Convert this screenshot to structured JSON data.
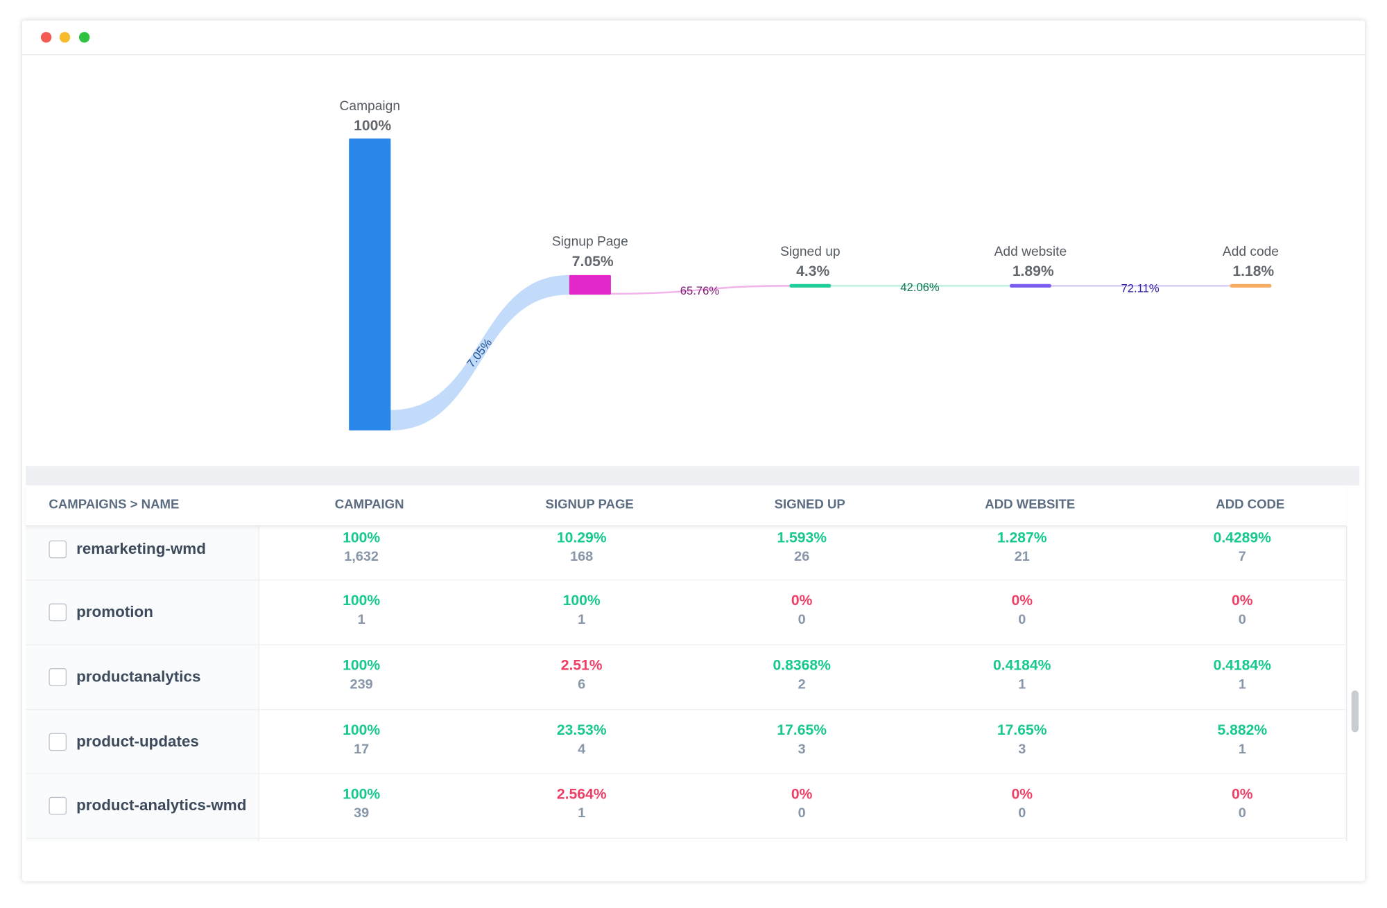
{
  "window": {
    "controls": {
      "close_color": "#f25a52",
      "minimize_color": "#f7bb2e",
      "maximize_color": "#2ec240"
    }
  },
  "funnel": {
    "stages": [
      {
        "name": "Campaign",
        "value": "100%",
        "color": "#2b86e9"
      },
      {
        "name": "Signup Page",
        "value": "7.05%",
        "color": "#e228c9"
      },
      {
        "name": "Signed up",
        "value": "4.3%",
        "color": "#1ecf9a"
      },
      {
        "name": "Add website",
        "value": "1.89%",
        "color": "#7b5cf0"
      },
      {
        "name": "Add code",
        "value": "1.18%",
        "color": "#f5ad62"
      }
    ],
    "links": [
      {
        "label": "7.05%",
        "color": "#c2dbfa",
        "text_color": "#1c4f8c"
      },
      {
        "label": "65.76%",
        "color": "#f1b6e9",
        "text_color": "#7a1a72"
      },
      {
        "label": "42.06%",
        "color": "#c3f0df",
        "text_color": "#0e7352"
      },
      {
        "label": "72.11%",
        "color": "#d9cff8",
        "text_color": "#2b1fa6"
      }
    ]
  },
  "table": {
    "headers": [
      "CAMPAIGNS > NAME",
      "CAMPAIGN",
      "SIGNUP PAGE",
      "SIGNED UP",
      "ADD WEBSITE",
      "ADD CODE"
    ],
    "colors": {
      "good": "#17c98e",
      "bad": "#ee3f66"
    },
    "rows": [
      {
        "name": "remarketing-wmd",
        "cells": [
          {
            "pct": "100%",
            "count": "1,632",
            "status": "good"
          },
          {
            "pct": "10.29%",
            "count": "168",
            "status": "good"
          },
          {
            "pct": "1.593%",
            "count": "26",
            "status": "good"
          },
          {
            "pct": "1.287%",
            "count": "21",
            "status": "good"
          },
          {
            "pct": "0.4289%",
            "count": "7",
            "status": "good"
          }
        ]
      },
      {
        "name": "promotion",
        "cells": [
          {
            "pct": "100%",
            "count": "1",
            "status": "good"
          },
          {
            "pct": "100%",
            "count": "1",
            "status": "good"
          },
          {
            "pct": "0%",
            "count": "0",
            "status": "bad"
          },
          {
            "pct": "0%",
            "count": "0",
            "status": "bad"
          },
          {
            "pct": "0%",
            "count": "0",
            "status": "bad"
          }
        ]
      },
      {
        "name": "productanalytics",
        "cells": [
          {
            "pct": "100%",
            "count": "239",
            "status": "good"
          },
          {
            "pct": "2.51%",
            "count": "6",
            "status": "bad"
          },
          {
            "pct": "0.8368%",
            "count": "2",
            "status": "good"
          },
          {
            "pct": "0.4184%",
            "count": "1",
            "status": "good"
          },
          {
            "pct": "0.4184%",
            "count": "1",
            "status": "good"
          }
        ]
      },
      {
        "name": "product-updates",
        "cells": [
          {
            "pct": "100%",
            "count": "17",
            "status": "good"
          },
          {
            "pct": "23.53%",
            "count": "4",
            "status": "good"
          },
          {
            "pct": "17.65%",
            "count": "3",
            "status": "good"
          },
          {
            "pct": "17.65%",
            "count": "3",
            "status": "good"
          },
          {
            "pct": "5.882%",
            "count": "1",
            "status": "good"
          }
        ]
      },
      {
        "name": "product-analytics-wmd",
        "cells": [
          {
            "pct": "100%",
            "count": "39",
            "status": "good"
          },
          {
            "pct": "2.564%",
            "count": "1",
            "status": "bad"
          },
          {
            "pct": "0%",
            "count": "0",
            "status": "bad"
          },
          {
            "pct": "0%",
            "count": "0",
            "status": "bad"
          },
          {
            "pct": "0%",
            "count": "0",
            "status": "bad"
          }
        ]
      }
    ]
  }
}
